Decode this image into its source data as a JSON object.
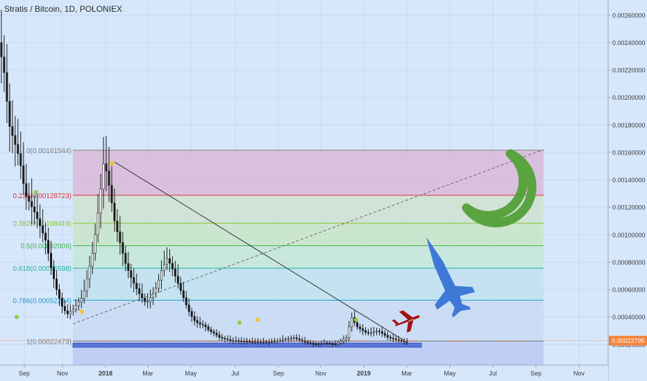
{
  "header": {
    "title": "Stratis / Bitcoin, 1D, POLONIEX"
  },
  "price_badge": "0.00022795",
  "colors": {
    "background": "#d6e7fb",
    "grid": "#c4d9f2",
    "candles": "#1a1a1a",
    "trendline": "#333333",
    "badge": "#f5833a",
    "moon": "#5aa341",
    "rocket": "#3f79d8",
    "plane": "#a61111",
    "support": "#4a66d8"
  },
  "icons": [
    "moon-icon",
    "rocket-icon",
    "plane-icon"
  ],
  "chart_data": {
    "type": "candlestick",
    "title": "Stratis / Bitcoin, 1D, POLONIEX",
    "x_tick_labels": [
      "Sep",
      "Nov",
      "2018",
      "Mar",
      "May",
      "Jul",
      "Sep",
      "Nov",
      "2019",
      "Mar",
      "May",
      "Jul",
      "Sep",
      "Nov"
    ],
    "y_tick_labels": [
      "0.00260000",
      "0.00240000",
      "0.00220000",
      "0.00200000",
      "0.00180000",
      "0.00160000",
      "0.00140000",
      "0.00120000",
      "0.00100000",
      "0.00080000",
      "0.00060000",
      "0.00040000",
      "0.00020000"
    ],
    "ylim": [
      5e-05,
      0.00271
    ],
    "last_price": 0.00022795,
    "fib_levels": [
      {
        "label": "0(0.00161544)",
        "ratio": 0,
        "value": 0.00161544,
        "color": "#7f7f7f"
      },
      {
        "label": "0.236(0.00128723)",
        "ratio": 0.236,
        "value": 0.00128723,
        "color": "#e03030"
      },
      {
        "label": "0.382(0.00108419)",
        "ratio": 0.382,
        "value": 0.00108419,
        "color": "#86c52a"
      },
      {
        "label": "0.5(0.00092009)",
        "ratio": 0.5,
        "value": 0.00092009,
        "color": "#3bb54a"
      },
      {
        "label": "0.618(0.00075598)",
        "ratio": 0.618,
        "value": 0.00075598,
        "color": "#1fb59a"
      },
      {
        "label": "0.786(0.00052234)",
        "ratio": 0.786,
        "value": 0.00052234,
        "color": "#1c9ac8"
      },
      {
        "label": "1(0.00022473)",
        "ratio": 1,
        "value": 0.00022473,
        "color": "#7f7f7f"
      }
    ],
    "price_path": [
      [
        0,
        0.0024
      ],
      [
        1,
        0.0022
      ],
      [
        2,
        0.0018
      ],
      [
        4,
        0.00155
      ],
      [
        5,
        0.0013
      ],
      [
        7,
        0.00115
      ],
      [
        9,
        0.00095
      ],
      [
        10,
        0.00075
      ],
      [
        11,
        0.0006
      ],
      [
        12,
        0.00048
      ],
      [
        13,
        0.00042
      ],
      [
        14,
        0.00045
      ],
      [
        16,
        0.00055
      ],
      [
        17,
        0.00072
      ],
      [
        18,
        0.0009
      ],
      [
        19,
        0.0012
      ],
      [
        20,
        0.00155
      ],
      [
        21,
        0.00135
      ],
      [
        22,
        0.0011
      ],
      [
        23,
        0.00095
      ],
      [
        24,
        0.0008
      ],
      [
        25,
        0.0007
      ],
      [
        26,
        0.00062
      ],
      [
        27,
        0.00055
      ],
      [
        28,
        0.0005
      ],
      [
        29,
        0.00055
      ],
      [
        30,
        0.00062
      ],
      [
        31,
        0.00075
      ],
      [
        32,
        0.00083
      ],
      [
        33,
        0.00075
      ],
      [
        34,
        0.00065
      ],
      [
        35,
        0.00055
      ],
      [
        36,
        0.00045
      ],
      [
        37,
        0.00038
      ],
      [
        38,
        0.00035
      ],
      [
        39,
        0.00034
      ],
      [
        40,
        0.0003
      ],
      [
        41,
        0.00028
      ],
      [
        42,
        0.00025
      ],
      [
        44,
        0.00023
      ],
      [
        48,
        0.00022
      ],
      [
        52,
        0.00022
      ],
      [
        56,
        0.00025
      ],
      [
        58,
        0.00022
      ],
      [
        60,
        0.0002
      ],
      [
        62,
        0.00021
      ],
      [
        64,
        0.0002
      ],
      [
        66,
        0.00025
      ],
      [
        67,
        0.0004
      ],
      [
        68,
        0.00033
      ],
      [
        70,
        0.00028
      ],
      [
        72,
        0.0003
      ],
      [
        74,
        0.00025
      ],
      [
        76,
        0.00023
      ],
      [
        77,
        0.00022
      ]
    ],
    "trendline": {
      "from": [
        20.5,
        0.00153
      ],
      "to": [
        75,
        0.00022
      ]
    },
    "diagonal_dashed": {
      "from": [
        1,
        0.00035
      ],
      "to": [
        107,
        0.00162
      ]
    },
    "support_zone": [
      0.00018,
      0.00021
    ]
  }
}
